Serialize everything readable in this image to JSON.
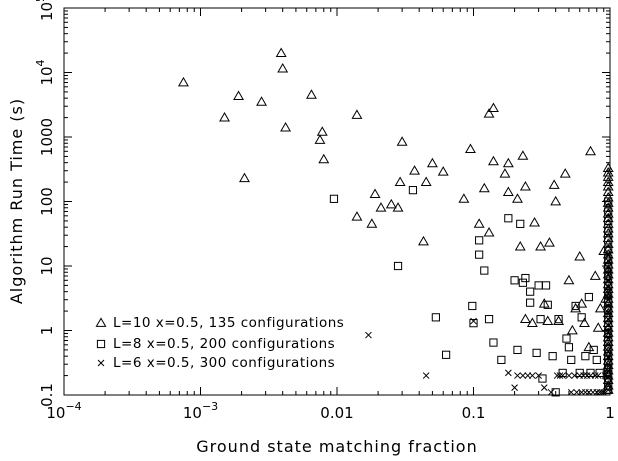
{
  "chart_data": {
    "type": "scatter",
    "xlabel": "Ground state matching fraction",
    "ylabel": "Algorithm Run Time (s)",
    "xscale": "log",
    "yscale": "log",
    "xlim": [
      0.0001,
      1
    ],
    "ylim": [
      0.1,
      100000
    ],
    "grid": false,
    "legend_position": "bottom-left",
    "x_ticks": [
      {
        "value": 0.0001,
        "label": "10",
        "sup": "−4"
      },
      {
        "value": 0.001,
        "label": "10",
        "sup": "−3"
      },
      {
        "value": 0.01,
        "label": "0.01",
        "sup": ""
      },
      {
        "value": 0.1,
        "label": "0.1",
        "sup": ""
      },
      {
        "value": 1,
        "label": "1",
        "sup": ""
      }
    ],
    "y_ticks": [
      {
        "value": 0.1,
        "label": "0.1",
        "sup": ""
      },
      {
        "value": 1,
        "label": "1",
        "sup": ""
      },
      {
        "value": 10,
        "label": "10",
        "sup": ""
      },
      {
        "value": 100,
        "label": "100",
        "sup": ""
      },
      {
        "value": 1000,
        "label": "1000",
        "sup": ""
      },
      {
        "value": 10000,
        "label": "10",
        "sup": "4"
      },
      {
        "value": 100000,
        "label": "10",
        "sup": "5"
      }
    ],
    "series": [
      {
        "name": "L=10 x=0.5, 135 configurations",
        "marker": "triangle",
        "points": [
          [
            0.00075,
            7000
          ],
          [
            0.0015,
            2000
          ],
          [
            0.0019,
            4300
          ],
          [
            0.0021,
            230
          ],
          [
            0.0028,
            3500
          ],
          [
            0.0039,
            20000
          ],
          [
            0.004,
            11500
          ],
          [
            0.0042,
            1400
          ],
          [
            0.0065,
            4500
          ],
          [
            0.0075,
            900
          ],
          [
            0.0078,
            1200
          ],
          [
            0.008,
            450
          ],
          [
            0.014,
            2200
          ],
          [
            0.014,
            58
          ],
          [
            0.018,
            45
          ],
          [
            0.019,
            130
          ],
          [
            0.021,
            80
          ],
          [
            0.025,
            90
          ],
          [
            0.028,
            80
          ],
          [
            0.029,
            200
          ],
          [
            0.03,
            840
          ],
          [
            0.037,
            300
          ],
          [
            0.043,
            24
          ],
          [
            0.045,
            200
          ],
          [
            0.05,
            390
          ],
          [
            0.06,
            290
          ],
          [
            0.085,
            110
          ],
          [
            0.095,
            650
          ],
          [
            0.11,
            45
          ],
          [
            0.12,
            160
          ],
          [
            0.13,
            33
          ],
          [
            0.13,
            2300
          ],
          [
            0.14,
            2800
          ],
          [
            0.14,
            420
          ],
          [
            0.17,
            270
          ],
          [
            0.18,
            390
          ],
          [
            0.18,
            140
          ],
          [
            0.21,
            110
          ],
          [
            0.22,
            20
          ],
          [
            0.23,
            510
          ],
          [
            0.24,
            170
          ],
          [
            0.24,
            1.5
          ],
          [
            0.27,
            1.3
          ],
          [
            0.28,
            47
          ],
          [
            0.31,
            20
          ],
          [
            0.33,
            2.6
          ],
          [
            0.35,
            1.4
          ],
          [
            0.36,
            23
          ],
          [
            0.39,
            180
          ],
          [
            0.4,
            100
          ],
          [
            0.42,
            1.4
          ],
          [
            0.47,
            270
          ],
          [
            0.5,
            6
          ],
          [
            0.53,
            1.0
          ],
          [
            0.56,
            2.2
          ],
          [
            0.6,
            14
          ],
          [
            0.62,
            2.6
          ],
          [
            0.65,
            1.3
          ],
          [
            0.7,
            0.55
          ],
          [
            0.72,
            600
          ],
          [
            0.78,
            7
          ],
          [
            0.82,
            1.1
          ],
          [
            0.85,
            2.2
          ],
          [
            0.9,
            17
          ],
          [
            0.93,
            3.1
          ],
          [
            0.97,
            330
          ],
          [
            0.97,
            280
          ],
          [
            0.97,
            240
          ],
          [
            0.97,
            200
          ],
          [
            0.97,
            170
          ],
          [
            0.97,
            140
          ],
          [
            0.97,
            115
          ],
          [
            0.97,
            95
          ],
          [
            0.97,
            80
          ],
          [
            0.97,
            65
          ],
          [
            0.97,
            55
          ],
          [
            0.97,
            45
          ],
          [
            0.97,
            38
          ],
          [
            0.97,
            32
          ],
          [
            0.97,
            27
          ],
          [
            0.97,
            22
          ],
          [
            0.97,
            18
          ],
          [
            0.97,
            15
          ],
          [
            0.97,
            12.5
          ],
          [
            0.97,
            10.5
          ],
          [
            0.97,
            8.8
          ],
          [
            0.97,
            7.4
          ],
          [
            0.97,
            6.2
          ],
          [
            0.97,
            5.2
          ],
          [
            0.97,
            4.4
          ],
          [
            0.97,
            3.7
          ],
          [
            0.97,
            3.1
          ],
          [
            0.97,
            2.6
          ],
          [
            0.97,
            2.2
          ],
          [
            0.97,
            1.85
          ],
          [
            0.97,
            1.55
          ],
          [
            0.97,
            1.3
          ],
          [
            0.97,
            1.1
          ],
          [
            0.97,
            0.92
          ],
          [
            0.97,
            0.78
          ],
          [
            0.97,
            0.66
          ],
          [
            0.97,
            0.56
          ],
          [
            0.97,
            0.47
          ],
          [
            0.97,
            0.4
          ],
          [
            0.97,
            0.34
          ],
          [
            0.97,
            0.29
          ],
          [
            0.97,
            0.24
          ],
          [
            0.97,
            0.2
          ],
          [
            0.97,
            0.17
          ],
          [
            0.97,
            0.14
          ],
          [
            0.97,
            0.12
          ]
        ]
      },
      {
        "name": "L=8 x=0.5, 200 configurations",
        "marker": "square",
        "points": [
          [
            0.0095,
            110
          ],
          [
            0.028,
            10
          ],
          [
            0.036,
            150
          ],
          [
            0.053,
            1.6
          ],
          [
            0.063,
            0.42
          ],
          [
            0.098,
            2.4
          ],
          [
            0.1,
            1.3
          ],
          [
            0.11,
            25
          ],
          [
            0.11,
            15
          ],
          [
            0.12,
            8.5
          ],
          [
            0.13,
            1.5
          ],
          [
            0.14,
            0.65
          ],
          [
            0.16,
            0.35
          ],
          [
            0.18,
            55
          ],
          [
            0.2,
            6
          ],
          [
            0.21,
            0.5
          ],
          [
            0.22,
            45
          ],
          [
            0.23,
            5.5
          ],
          [
            0.24,
            6.5
          ],
          [
            0.26,
            4
          ],
          [
            0.26,
            2.7
          ],
          [
            0.29,
            0.45
          ],
          [
            0.3,
            5
          ],
          [
            0.31,
            1.5
          ],
          [
            0.32,
            0.18
          ],
          [
            0.34,
            5
          ],
          [
            0.35,
            2.5
          ],
          [
            0.38,
            0.4
          ],
          [
            0.4,
            0.11
          ],
          [
            0.42,
            1.5
          ],
          [
            0.45,
            0.22
          ],
          [
            0.48,
            0.75
          ],
          [
            0.5,
            0.55
          ],
          [
            0.52,
            0.35
          ],
          [
            0.56,
            2.4
          ],
          [
            0.6,
            0.22
          ],
          [
            0.62,
            1.6
          ],
          [
            0.66,
            0.4
          ],
          [
            0.7,
            3.3
          ],
          [
            0.72,
            0.22
          ],
          [
            0.76,
            0.5
          ],
          [
            0.8,
            0.35
          ],
          [
            0.84,
            0.22
          ],
          [
            0.97,
            100
          ],
          [
            0.97,
            70
          ],
          [
            0.97,
            50
          ],
          [
            0.97,
            35
          ],
          [
            0.97,
            25
          ],
          [
            0.97,
            18
          ],
          [
            0.97,
            13
          ],
          [
            0.97,
            9.5
          ],
          [
            0.97,
            7
          ],
          [
            0.97,
            5
          ],
          [
            0.97,
            3.8
          ],
          [
            0.97,
            2.8
          ],
          [
            0.97,
            2.1
          ],
          [
            0.97,
            1.6
          ],
          [
            0.97,
            1.2
          ],
          [
            0.97,
            0.9
          ],
          [
            0.97,
            0.68
          ],
          [
            0.97,
            0.52
          ],
          [
            0.97,
            0.4
          ],
          [
            0.97,
            0.32
          ],
          [
            0.97,
            0.26
          ],
          [
            0.97,
            0.21
          ],
          [
            0.97,
            0.17
          ],
          [
            0.97,
            0.14
          ],
          [
            0.97,
            0.12
          ]
        ]
      },
      {
        "name": "L=6 x=0.5, 300 configurations",
        "marker": "cross",
        "points": [
          [
            0.017,
            0.85
          ],
          [
            0.045,
            0.2
          ],
          [
            0.1,
            1.4
          ],
          [
            0.18,
            0.22
          ],
          [
            0.2,
            0.13
          ],
          [
            0.21,
            0.2
          ],
          [
            0.23,
            0.2
          ],
          [
            0.25,
            0.2
          ],
          [
            0.27,
            0.2
          ],
          [
            0.3,
            0.2
          ],
          [
            0.33,
            0.13
          ],
          [
            0.37,
            0.11
          ],
          [
            0.41,
            0.2
          ],
          [
            0.43,
            0.2
          ],
          [
            0.45,
            0.2
          ],
          [
            0.5,
            0.2
          ],
          [
            0.52,
            0.11
          ],
          [
            0.55,
            0.2
          ],
          [
            0.57,
            0.11
          ],
          [
            0.6,
            0.2
          ],
          [
            0.62,
            0.11
          ],
          [
            0.64,
            0.2
          ],
          [
            0.66,
            0.11
          ],
          [
            0.68,
            0.2
          ],
          [
            0.7,
            0.11
          ],
          [
            0.72,
            0.2
          ],
          [
            0.75,
            0.11
          ],
          [
            0.78,
            0.2
          ],
          [
            0.8,
            0.11
          ],
          [
            0.82,
            0.2
          ],
          [
            0.84,
            0.11
          ],
          [
            0.87,
            0.11
          ],
          [
            0.9,
            0.11
          ],
          [
            0.92,
            0.2
          ],
          [
            0.97,
            15
          ],
          [
            0.97,
            12
          ],
          [
            0.97,
            9.5
          ],
          [
            0.97,
            7.5
          ],
          [
            0.97,
            6
          ],
          [
            0.97,
            4.8
          ],
          [
            0.97,
            3.8
          ],
          [
            0.97,
            3
          ],
          [
            0.97,
            2.4
          ],
          [
            0.97,
            1.9
          ],
          [
            0.97,
            1.5
          ],
          [
            0.97,
            1.2
          ],
          [
            0.97,
            0.95
          ],
          [
            0.97,
            0.75
          ],
          [
            0.97,
            0.6
          ],
          [
            0.97,
            0.48
          ],
          [
            0.97,
            0.38
          ],
          [
            0.97,
            0.3
          ],
          [
            0.97,
            0.24
          ],
          [
            0.97,
            0.19
          ],
          [
            0.97,
            0.15
          ],
          [
            0.97,
            0.12
          ]
        ]
      }
    ]
  }
}
